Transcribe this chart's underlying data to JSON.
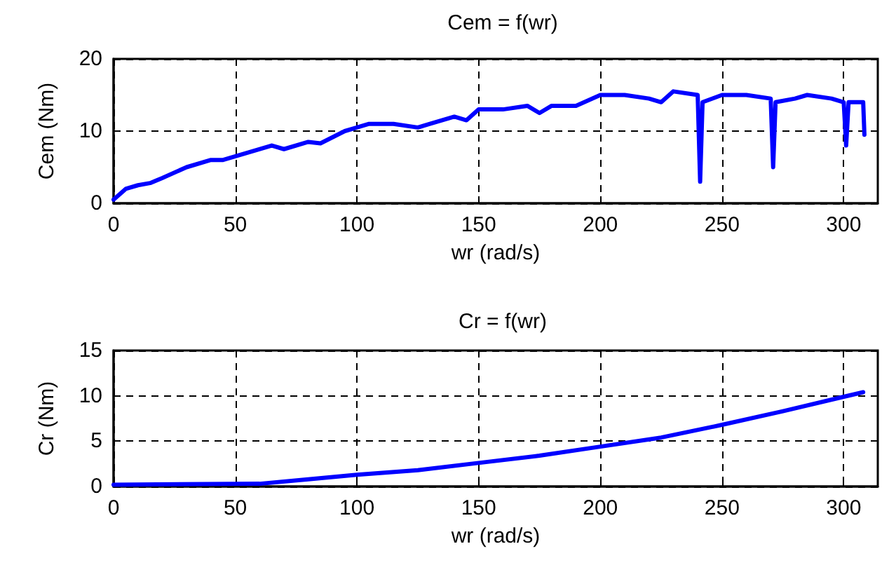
{
  "chart_data": [
    {
      "type": "line",
      "title": "Cem = f(wr)",
      "xlabel": "wr (rad/s)",
      "ylabel": "Cem (Nm)",
      "xlim": [
        0,
        314
      ],
      "xticks": [
        0,
        50,
        100,
        150,
        200,
        250,
        300
      ],
      "ylim": [
        0,
        20
      ],
      "yticks": [
        0,
        10,
        20
      ],
      "grid": true,
      "marker": "none",
      "line_style": "solid",
      "series": [
        {
          "color": "#0000ff",
          "x": [
            0,
            5,
            10,
            15,
            20,
            30,
            40,
            45,
            55,
            65,
            70,
            80,
            85,
            95,
            105,
            115,
            125,
            130,
            140,
            145,
            150,
            160,
            170,
            175,
            180,
            190,
            200,
            210,
            220,
            225,
            230,
            240,
            241,
            242,
            250,
            260,
            270,
            271,
            272,
            280,
            285,
            295,
            300,
            301,
            302,
            305,
            308,
            308.5
          ],
          "values": [
            0.5,
            2,
            2.5,
            2.8,
            3.5,
            5,
            6,
            6,
            7,
            8,
            7.5,
            8.5,
            8.3,
            10,
            11,
            11,
            10.5,
            11,
            12,
            11.5,
            13,
            13,
            13.5,
            12.5,
            13.5,
            13.5,
            15,
            15,
            14.5,
            14,
            15.5,
            15,
            3,
            14,
            15,
            15,
            14.5,
            5,
            14,
            14.5,
            15,
            14.5,
            14,
            8,
            14,
            14,
            14,
            9.5
          ]
        }
      ]
    },
    {
      "type": "line",
      "title": "Cr = f(wr)",
      "xlabel": "wr (rad/s)",
      "ylabel": "Cr (Nm)",
      "xlim": [
        0,
        314
      ],
      "xticks": [
        0,
        50,
        100,
        150,
        200,
        250,
        300
      ],
      "ylim": [
        0,
        15
      ],
      "yticks": [
        0,
        5,
        10,
        15
      ],
      "grid": true,
      "marker": "none",
      "line_style": "solid",
      "series": [
        {
          "color": "#0000ff",
          "x": [
            0,
            60,
            80,
            100,
            125,
            150,
            175,
            200,
            225,
            250,
            275,
            300,
            308
          ],
          "values": [
            0.2,
            0.3,
            0.8,
            1.3,
            1.8,
            2.6,
            3.4,
            4.4,
            5.4,
            6.8,
            8.3,
            9.9,
            10.4
          ]
        }
      ]
    }
  ]
}
